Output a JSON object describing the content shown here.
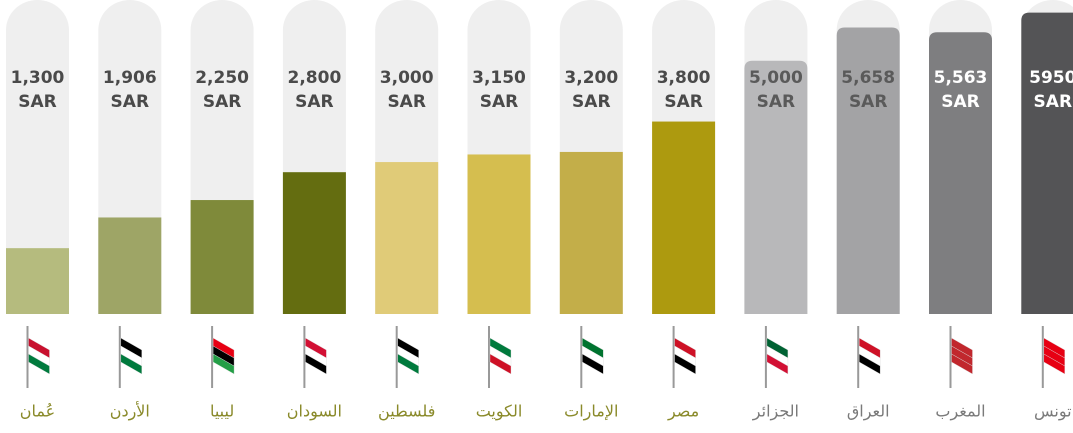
{
  "chart_data": {
    "type": "bar",
    "categories": [
      "عُمان",
      "الأردن",
      "ليبيا",
      "السودان",
      "فلسطين",
      "الكويت",
      "الإمارات",
      "مصر",
      "الجزائر",
      "العراق",
      "المغرب",
      "تونس"
    ],
    "values": [
      1300,
      1906,
      2250,
      2800,
      3000,
      3150,
      3200,
      3800,
      5000,
      5658,
      5563,
      5950
    ],
    "value_labels": [
      "1,300",
      "1,906",
      "2,250",
      "2,800",
      "3,000",
      "3,150",
      "3,200",
      "3,800",
      "5,000",
      "5,658",
      "5,563",
      "5950"
    ],
    "unit": "SAR",
    "colors": [
      "#b5bb7e",
      "#9ea566",
      "#7f8a3a",
      "#646d10",
      "#e0cb78",
      "#d5be4f",
      "#c3ae49",
      "#ad9a0f",
      "#b8b8ba",
      "#a3a3a5",
      "#7e7e80",
      "#545456"
    ],
    "label_colors": [
      "#4a4a4a",
      "#4a4a4a",
      "#4a4a4a",
      "#4a4a4a",
      "#4a4a4a",
      "#4a4a4a",
      "#4a4a4a",
      "#4a4a4a",
      "#5a5a5a",
      "#5a5a5a",
      "#ffffff",
      "#ffffff"
    ],
    "ylim": [
      0,
      6200
    ]
  }
}
